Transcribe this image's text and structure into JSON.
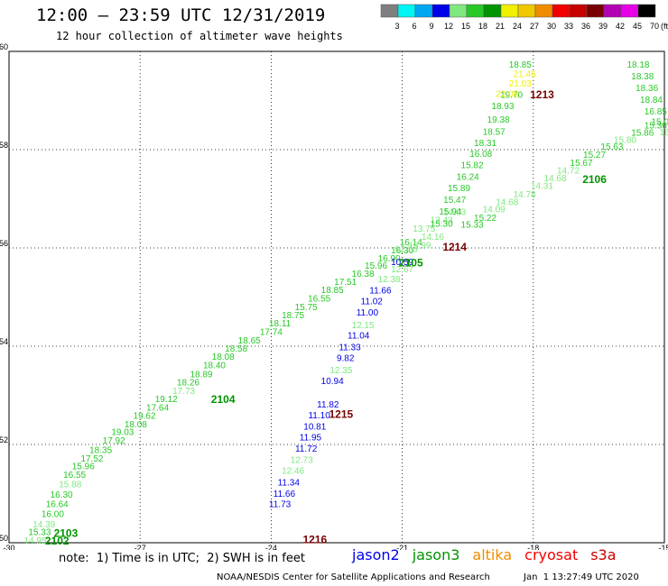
{
  "header": {
    "title": "12:00 – 23:59 UTC 12/31/2019",
    "subtitle": "12 hour collection of altimeter wave heights"
  },
  "color_scale": {
    "ticks": [
      "3",
      "6",
      "9",
      "12",
      "15",
      "18",
      "21",
      "24",
      "27",
      "30",
      "33",
      "36",
      "39",
      "42",
      "45",
      "70"
    ],
    "unit": "(ft)",
    "colors": [
      "#7f7f7f",
      "#00f5f5",
      "#00a8f0",
      "#0000e8",
      "#7fe87f",
      "#28c828",
      "#009400",
      "#f0f000",
      "#f0c800",
      "#f08c00",
      "#f00000",
      "#c80000",
      "#780000",
      "#b400b4",
      "#e600e6",
      "#000000"
    ]
  },
  "chart_data": {
    "type": "scatter",
    "title": "12:00 – 23:59 UTC 12/31/2019",
    "subtitle": "12 hour collection of altimeter wave heights",
    "xlim": [
      -30,
      -15
    ],
    "ylim": [
      50,
      60
    ],
    "x_ticks": [
      "-30",
      "-27",
      "-24",
      "-21",
      "-18",
      "-15"
    ],
    "y_ticks": [
      "50",
      "52",
      "54",
      "56",
      "58",
      "60"
    ],
    "grid": true,
    "points": [
      {
        "x": -29.4,
        "y": 50.03,
        "label": "14.95",
        "color": "#7fe87f"
      },
      {
        "x": -29.3,
        "y": 50.2,
        "label": "15.33",
        "color": "#28c828"
      },
      {
        "x": -29.2,
        "y": 50.36,
        "label": "14.39",
        "color": "#7fe87f"
      },
      {
        "x": -29.0,
        "y": 50.57,
        "label": "16.00",
        "color": "#28c828"
      },
      {
        "x": -28.9,
        "y": 50.77,
        "label": "16.64",
        "color": "#28c828"
      },
      {
        "x": -28.8,
        "y": 50.97,
        "label": "16.30",
        "color": "#28c828"
      },
      {
        "x": -28.6,
        "y": 51.18,
        "label": "15.88",
        "color": "#7fe87f"
      },
      {
        "x": -28.5,
        "y": 51.37,
        "label": "16.55",
        "color": "#28c828"
      },
      {
        "x": -28.3,
        "y": 51.54,
        "label": "15.96",
        "color": "#28c828"
      },
      {
        "x": -28.1,
        "y": 51.7,
        "label": "17.52",
        "color": "#28c828"
      },
      {
        "x": -27.9,
        "y": 51.87,
        "label": "18.35",
        "color": "#28c828"
      },
      {
        "x": -27.6,
        "y": 52.07,
        "label": "17.92",
        "color": "#28c828"
      },
      {
        "x": -27.4,
        "y": 52.24,
        "label": "19.03",
        "color": "#28c828"
      },
      {
        "x": -27.1,
        "y": 52.4,
        "label": "18.08",
        "color": "#28c828"
      },
      {
        "x": -26.9,
        "y": 52.57,
        "label": "19.62",
        "color": "#28c828"
      },
      {
        "x": -26.6,
        "y": 52.74,
        "label": "17.64",
        "color": "#28c828"
      },
      {
        "x": -26.4,
        "y": 52.91,
        "label": "19.12",
        "color": "#28c828"
      },
      {
        "x": -26.0,
        "y": 53.08,
        "label": "17.73",
        "color": "#7fe87f"
      },
      {
        "x": -25.9,
        "y": 53.25,
        "label": "18.26",
        "color": "#28c828"
      },
      {
        "x": -25.6,
        "y": 53.42,
        "label": "18.89",
        "color": "#28c828"
      },
      {
        "x": -25.3,
        "y": 53.6,
        "label": "18.40",
        "color": "#28c828"
      },
      {
        "x": -25.1,
        "y": 53.77,
        "label": "18.08",
        "color": "#28c828"
      },
      {
        "x": -24.8,
        "y": 53.94,
        "label": "18.58",
        "color": "#28c828"
      },
      {
        "x": -24.5,
        "y": 54.1,
        "label": "18.65",
        "color": "#28c828"
      },
      {
        "x": -24.0,
        "y": 54.28,
        "label": "17.74",
        "color": "#28c828"
      },
      {
        "x": -23.8,
        "y": 54.45,
        "label": "18.11",
        "color": "#28c828"
      },
      {
        "x": -23.5,
        "y": 54.62,
        "label": "18.75",
        "color": "#28c828"
      },
      {
        "x": -23.2,
        "y": 54.78,
        "label": "15.75",
        "color": "#28c828"
      },
      {
        "x": -22.9,
        "y": 54.96,
        "label": "16.55",
        "color": "#28c828"
      },
      {
        "x": -22.6,
        "y": 55.13,
        "label": "18.85",
        "color": "#28c828"
      },
      {
        "x": -22.3,
        "y": 55.3,
        "label": "17.51",
        "color": "#28c828"
      },
      {
        "x": -21.9,
        "y": 55.46,
        "label": "16.38",
        "color": "#28c828"
      },
      {
        "x": -21.6,
        "y": 55.63,
        "label": "15.96",
        "color": "#28c828"
      },
      {
        "x": -21.3,
        "y": 55.77,
        "label": "16.90",
        "color": "#28c828"
      },
      {
        "x": -21.0,
        "y": 55.94,
        "label": "16.30",
        "color": "#28c828"
      },
      {
        "x": -20.8,
        "y": 56.1,
        "label": "16.14",
        "color": "#28c828"
      },
      {
        "x": -20.9,
        "y": 55.97,
        "label": "12.53",
        "color": "#7fe87f"
      },
      {
        "x": -20.6,
        "y": 56.04,
        "label": "13.99",
        "color": "#7fe87f"
      },
      {
        "x": -20.5,
        "y": 56.38,
        "label": "13.75",
        "color": "#7fe87f"
      },
      {
        "x": -20.3,
        "y": 56.21,
        "label": "14.16",
        "color": "#7fe87f"
      },
      {
        "x": -20.1,
        "y": 56.55,
        "label": "13.43",
        "color": "#7fe87f"
      },
      {
        "x": -19.8,
        "y": 56.72,
        "label": "14.03",
        "color": "#7fe87f"
      },
      {
        "x": -19.4,
        "y": 56.46,
        "label": "15.33",
        "color": "#28c828"
      },
      {
        "x": -19.1,
        "y": 56.6,
        "label": "15.22",
        "color": "#28c828"
      },
      {
        "x": -18.9,
        "y": 56.77,
        "label": "14.09",
        "color": "#7fe87f"
      },
      {
        "x": -18.6,
        "y": 56.92,
        "label": "14.68",
        "color": "#7fe87f"
      },
      {
        "x": -18.2,
        "y": 57.08,
        "label": "14.78",
        "color": "#7fe87f"
      },
      {
        "x": -17.8,
        "y": 57.25,
        "label": "14.31",
        "color": "#7fe87f"
      },
      {
        "x": -17.5,
        "y": 57.41,
        "label": "14.68",
        "color": "#7fe87f"
      },
      {
        "x": -17.2,
        "y": 57.56,
        "label": "14.72",
        "color": "#7fe87f"
      },
      {
        "x": -16.9,
        "y": 57.72,
        "label": "15.67",
        "color": "#28c828"
      },
      {
        "x": -16.6,
        "y": 57.88,
        "label": "15.27",
        "color": "#28c828"
      },
      {
        "x": -16.2,
        "y": 58.05,
        "label": "15.63",
        "color": "#28c828"
      },
      {
        "x": -15.9,
        "y": 58.19,
        "label": "15.80",
        "color": "#7fe87f"
      },
      {
        "x": -15.5,
        "y": 58.33,
        "label": "15.86",
        "color": "#28c828"
      },
      {
        "x": -15.2,
        "y": 58.48,
        "label": "15.36",
        "color": "#28c828"
      },
      {
        "x": -21.0,
        "y": 55.7,
        "label": "10.59",
        "color": "#0000e8"
      },
      {
        "x": -21.0,
        "y": 55.55,
        "label": "12.67",
        "color": "#7fe87f"
      },
      {
        "x": -21.3,
        "y": 55.35,
        "label": "12.38",
        "color": "#7fe87f"
      },
      {
        "x": -21.5,
        "y": 55.12,
        "label": "11.66",
        "color": "#0000e8"
      },
      {
        "x": -21.7,
        "y": 54.9,
        "label": "11.02",
        "color": "#0000e8"
      },
      {
        "x": -21.8,
        "y": 54.67,
        "label": "11.00",
        "color": "#0000e8"
      },
      {
        "x": -21.9,
        "y": 54.42,
        "label": "12.15",
        "color": "#7fe87f"
      },
      {
        "x": -22.0,
        "y": 54.2,
        "label": "11.04",
        "color": "#0000e8"
      },
      {
        "x": -22.2,
        "y": 53.97,
        "label": "11.33",
        "color": "#0000e8"
      },
      {
        "x": -22.3,
        "y": 53.75,
        "label": "9.82",
        "color": "#0000e8"
      },
      {
        "x": -22.4,
        "y": 53.5,
        "label": "12.35",
        "color": "#7fe87f"
      },
      {
        "x": -22.6,
        "y": 53.28,
        "label": "10.94",
        "color": "#0000e8"
      },
      {
        "x": -22.7,
        "y": 52.8,
        "label": "11.82",
        "color": "#0000e8"
      },
      {
        "x": -22.9,
        "y": 52.58,
        "label": "11.10",
        "color": "#0000e8"
      },
      {
        "x": -23.0,
        "y": 52.35,
        "label": "10.81",
        "color": "#0000e8"
      },
      {
        "x": -23.1,
        "y": 52.13,
        "label": "11.95",
        "color": "#0000e8"
      },
      {
        "x": -23.2,
        "y": 51.9,
        "label": "11.72",
        "color": "#0000e8"
      },
      {
        "x": -23.3,
        "y": 51.67,
        "label": "12.73",
        "color": "#7fe87f"
      },
      {
        "x": -23.5,
        "y": 51.45,
        "label": "12.46",
        "color": "#7fe87f"
      },
      {
        "x": -23.6,
        "y": 51.21,
        "label": "11.34",
        "color": "#0000e8"
      },
      {
        "x": -23.7,
        "y": 50.98,
        "label": "11.66",
        "color": "#0000e8"
      },
      {
        "x": -23.8,
        "y": 50.77,
        "label": "11.73",
        "color": "#0000e8"
      },
      {
        "x": -18.3,
        "y": 59.72,
        "label": "18.85",
        "color": "#28c828"
      },
      {
        "x": -18.2,
        "y": 59.53,
        "label": "21.46",
        "color": "#f0f000"
      },
      {
        "x": -18.3,
        "y": 59.33,
        "label": "21.03",
        "color": "#f0f000"
      },
      {
        "x": -18.5,
        "y": 59.1,
        "label": "19.70",
        "color": "#28c828"
      },
      {
        "x": -18.6,
        "y": 59.12,
        "label": "22.08",
        "color": "#f0f000"
      },
      {
        "x": -18.7,
        "y": 58.87,
        "label": "18.93",
        "color": "#28c828"
      },
      {
        "x": -18.8,
        "y": 58.6,
        "label": "19.38",
        "color": "#28c828"
      },
      {
        "x": -18.9,
        "y": 58.35,
        "label": "18.57",
        "color": "#28c828"
      },
      {
        "x": -19.1,
        "y": 58.12,
        "label": "18.31",
        "color": "#28c828"
      },
      {
        "x": -19.2,
        "y": 57.9,
        "label": "16.08",
        "color": "#28c828"
      },
      {
        "x": -19.4,
        "y": 57.67,
        "label": "15.82",
        "color": "#28c828"
      },
      {
        "x": -19.5,
        "y": 57.43,
        "label": "16.24",
        "color": "#28c828"
      },
      {
        "x": -19.7,
        "y": 57.2,
        "label": "15.89",
        "color": "#28c828"
      },
      {
        "x": -19.8,
        "y": 56.97,
        "label": "15.47",
        "color": "#28c828"
      },
      {
        "x": -19.9,
        "y": 56.73,
        "label": "15.94",
        "color": "#28c828"
      },
      {
        "x": -20.1,
        "y": 56.48,
        "label": "15.30",
        "color": "#28c828"
      },
      {
        "x": -15.6,
        "y": 59.72,
        "label": "18.18",
        "color": "#28c828"
      },
      {
        "x": -15.5,
        "y": 59.48,
        "label": "18.38",
        "color": "#28c828"
      },
      {
        "x": -15.4,
        "y": 59.24,
        "label": "18.36",
        "color": "#28c828"
      },
      {
        "x": -15.3,
        "y": 59.0,
        "label": "18.84",
        "color": "#28c828"
      },
      {
        "x": -15.2,
        "y": 58.76,
        "label": "16.85",
        "color": "#28c828"
      },
      {
        "x": -15.1,
        "y": 58.55,
        "label": "15.0",
        "color": "#28c828"
      },
      {
        "x": -15.0,
        "y": 58.34,
        "label": "16",
        "color": "#7fe87f"
      }
    ],
    "pass_labels": [
      {
        "x": -28.9,
        "y": 50.02,
        "label": "2102",
        "color": "#009400"
      },
      {
        "x": -28.7,
        "y": 50.18,
        "label": "2103",
        "color": "#009400"
      },
      {
        "x": -25.1,
        "y": 52.9,
        "label": "2104",
        "color": "#009400"
      },
      {
        "x": -20.8,
        "y": 55.68,
        "label": "2105",
        "color": "#009400"
      },
      {
        "x": -16.6,
        "y": 57.38,
        "label": "2106",
        "color": "#009400"
      },
      {
        "x": -19.8,
        "y": 56.0,
        "label": "1214",
        "color": "#780000"
      },
      {
        "x": -22.4,
        "y": 52.6,
        "label": "1215",
        "color": "#780000"
      },
      {
        "x": -23.0,
        "y": 50.05,
        "label": "1216",
        "color": "#780000"
      },
      {
        "x": -17.8,
        "y": 59.1,
        "label": "1213",
        "color": "#780000"
      }
    ]
  },
  "footer": {
    "note": "note:  1) Time is in UTC;  2) SWH is in feet",
    "satellites": [
      {
        "name": "jason2",
        "color": "#0000e8"
      },
      {
        "name": "jason3",
        "color": "#009400"
      },
      {
        "name": "altika",
        "color": "#f08c00"
      },
      {
        "name": "cryosat",
        "color": "#f00000"
      },
      {
        "name": "s3a",
        "color": "#c80000"
      }
    ],
    "credit": "NOAA/NESDIS Center for Satellite Applications and Research",
    "timestamp": "Jan  1 13:27:49 UTC 2020"
  }
}
